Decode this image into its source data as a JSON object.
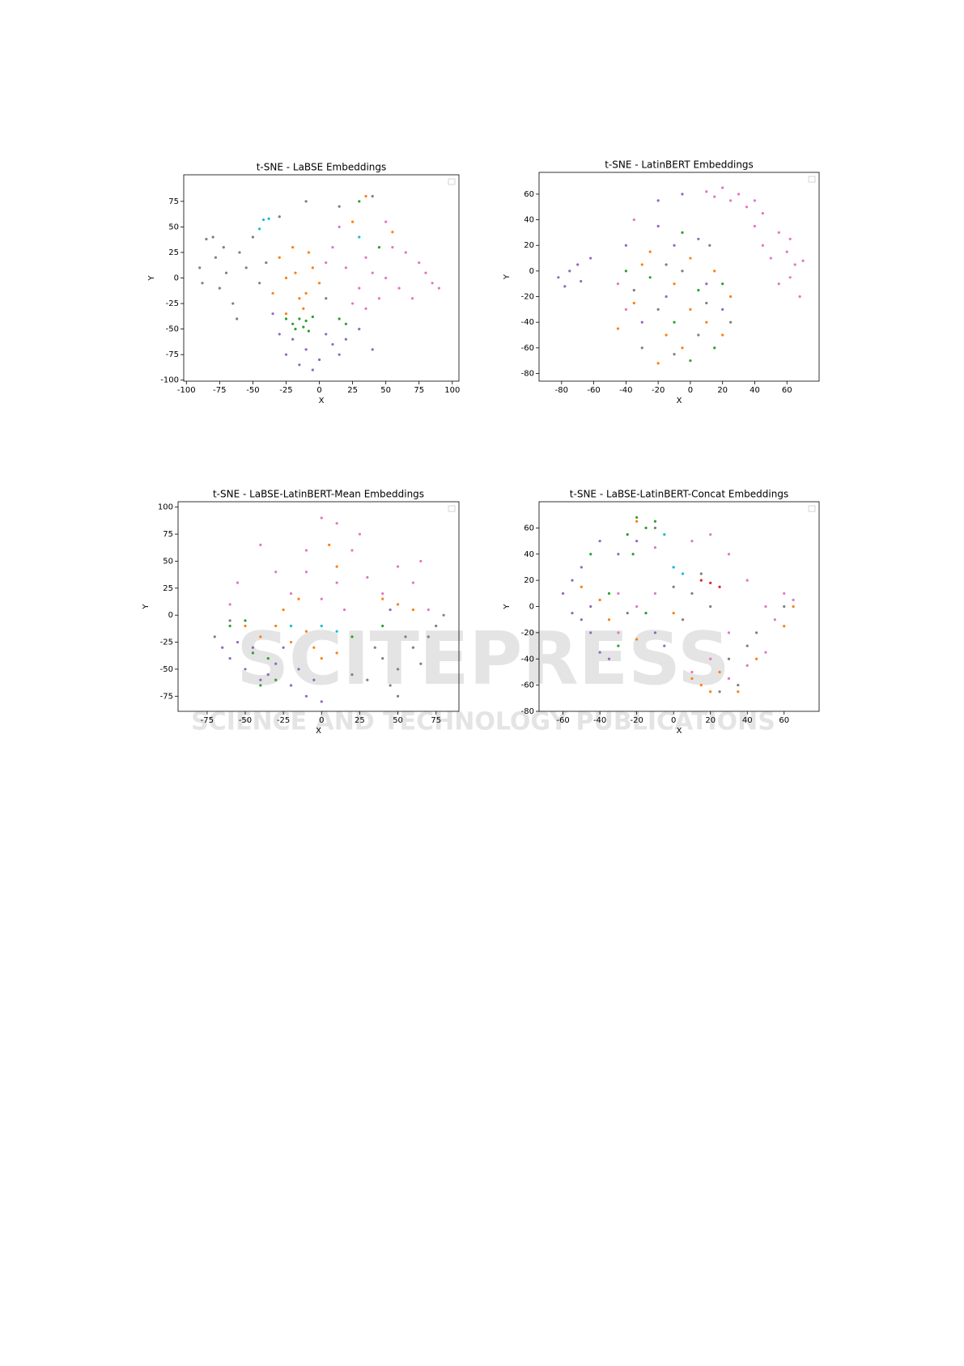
{
  "watermark": {
    "brand": "SCITEPRESS",
    "tagline": "SCIENCE AND TECHNOLOGY PUBLICATIONS"
  },
  "chart_data": [
    {
      "type": "scatter",
      "title": "t-SNE - LaBSE Embeddings",
      "x_label": "X",
      "y_label": "Y",
      "xlim": [
        -102,
        105
      ],
      "ylim": [
        -101,
        101
      ],
      "xticks": [
        -100,
        -75,
        -50,
        -25,
        0,
        25,
        50,
        75,
        100
      ],
      "yticks": [
        -100,
        -75,
        -50,
        -25,
        0,
        25,
        50,
        75
      ],
      "series": [
        {
          "color": "#7f7f7f",
          "x": [
            -85,
            -80,
            -78,
            -90,
            -70,
            -75,
            -60,
            -65,
            -55,
            -50,
            -45,
            -88,
            -72,
            -62,
            -30,
            -10,
            15,
            40,
            5,
            -40
          ],
          "values": [
            38,
            40,
            20,
            10,
            5,
            -10,
            25,
            -25,
            10,
            40,
            -5,
            -5,
            30,
            -40,
            60,
            75,
            70,
            80,
            -20,
            15
          ]
        },
        {
          "color": "#e377c2",
          "x": [
            20,
            35,
            50,
            60,
            75,
            85,
            90,
            45,
            30,
            65,
            10,
            55,
            70,
            40,
            25,
            80,
            5,
            15,
            50,
            35
          ],
          "values": [
            10,
            20,
            0,
            -10,
            15,
            -5,
            -10,
            -20,
            -10,
            25,
            30,
            30,
            -20,
            5,
            -25,
            5,
            15,
            50,
            55,
            -30
          ]
        },
        {
          "color": "#ff7f0e",
          "x": [
            -25,
            -15,
            -10,
            -30,
            -20,
            -5,
            -25,
            -12,
            -35,
            -18,
            25,
            35,
            55,
            0,
            -8
          ],
          "values": [
            0,
            -20,
            -15,
            20,
            30,
            10,
            -35,
            -30,
            -15,
            5,
            55,
            80,
            45,
            -5,
            25
          ]
        },
        {
          "color": "#2ca02c",
          "x": [
            -20,
            -15,
            -10,
            -5,
            -18,
            -12,
            -25,
            -8,
            15,
            20,
            45,
            30
          ],
          "values": [
            -45,
            -40,
            -42,
            -38,
            -50,
            -48,
            -40,
            -52,
            -40,
            -45,
            30,
            75
          ]
        },
        {
          "color": "#9467bd",
          "x": [
            -20,
            -10,
            0,
            10,
            -25,
            5,
            -15,
            20,
            -5,
            -30,
            15,
            30,
            -35,
            40
          ],
          "values": [
            -60,
            -70,
            -80,
            -65,
            -75,
            -55,
            -85,
            -60,
            -90,
            -55,
            -75,
            -50,
            -35,
            -70
          ]
        },
        {
          "color": "#17becf",
          "x": [
            -42,
            -38,
            -45,
            30
          ],
          "values": [
            57,
            58,
            48,
            40
          ]
        }
      ]
    },
    {
      "type": "scatter",
      "title": "t-SNE - LatinBERT Embeddings",
      "x_label": "X",
      "y_label": "Y",
      "xlim": [
        -94,
        80
      ],
      "ylim": [
        -86,
        77
      ],
      "xticks": [
        -80,
        -60,
        -40,
        -20,
        0,
        20,
        40,
        60
      ],
      "yticks": [
        -80,
        -60,
        -40,
        -20,
        0,
        20,
        40,
        60
      ],
      "series": [
        {
          "color": "#e377c2",
          "x": [
            10,
            20,
            30,
            40,
            45,
            55,
            60,
            65,
            70,
            62,
            68,
            45,
            50,
            35,
            25,
            15,
            40,
            62,
            55,
            -35,
            -40,
            -45
          ],
          "values": [
            62,
            65,
            60,
            55,
            45,
            30,
            15,
            5,
            8,
            -5,
            -20,
            20,
            10,
            50,
            55,
            58,
            35,
            25,
            -10,
            40,
            -30,
            -10
          ]
        },
        {
          "color": "#9467bd",
          "x": [
            -82,
            -75,
            -70,
            -62,
            -78,
            -68,
            -40,
            -20,
            -10,
            5,
            -30,
            -15,
            10,
            20,
            -20,
            -5
          ],
          "values": [
            -5,
            0,
            5,
            10,
            -12,
            -8,
            20,
            35,
            20,
            25,
            -40,
            -20,
            -10,
            -30,
            55,
            60
          ]
        },
        {
          "color": "#ff7f0e",
          "x": [
            -35,
            -10,
            0,
            -25,
            15,
            20,
            -5,
            -20,
            -15,
            10,
            25,
            -45,
            0,
            -30
          ],
          "values": [
            -25,
            -10,
            10,
            15,
            0,
            -50,
            -60,
            -72,
            -50,
            -40,
            -20,
            -45,
            -30,
            5
          ]
        },
        {
          "color": "#2ca02c",
          "x": [
            -25,
            5,
            15,
            -10,
            -40,
            20,
            -5,
            0
          ],
          "values": [
            -5,
            -15,
            -60,
            -40,
            0,
            -10,
            30,
            -70
          ]
        },
        {
          "color": "#7f7f7f",
          "x": [
            -20,
            -5,
            10,
            25,
            -30,
            -15,
            5,
            -35,
            12,
            -10
          ],
          "values": [
            -30,
            0,
            -25,
            -40,
            -60,
            5,
            -50,
            -15,
            20,
            -65
          ]
        }
      ]
    },
    {
      "type": "scatter",
      "title": "t-SNE - LaBSE-LatinBERT-Mean Embeddings",
      "x_label": "X",
      "y_label": "Y",
      "xlim": [
        -94,
        90
      ],
      "ylim": [
        -89,
        105
      ],
      "xticks": [
        -75,
        -50,
        -25,
        0,
        25,
        50,
        75
      ],
      "yticks": [
        -75,
        -50,
        -25,
        0,
        25,
        50,
        75,
        100
      ],
      "series": [
        {
          "color": "#e377c2",
          "x": [
            0,
            10,
            -10,
            20,
            -40,
            -30,
            -10,
            10,
            30,
            50,
            60,
            -20,
            0,
            40,
            -55,
            65,
            25,
            -60,
            15,
            70
          ],
          "values": [
            90,
            85,
            60,
            60,
            65,
            40,
            40,
            30,
            35,
            45,
            30,
            20,
            15,
            20,
            30,
            50,
            75,
            10,
            5,
            5
          ]
        },
        {
          "color": "#7f7f7f",
          "x": [
            40,
            50,
            60,
            45,
            70,
            75,
            30,
            55,
            65,
            80,
            20,
            -70,
            -60,
            35,
            50
          ],
          "values": [
            -40,
            -50,
            -30,
            -65,
            -20,
            -10,
            -60,
            -20,
            -45,
            0,
            -55,
            -20,
            -5,
            -30,
            -75
          ]
        },
        {
          "color": "#9467bd",
          "x": [
            -60,
            -50,
            -45,
            -40,
            -30,
            -20,
            -10,
            -55,
            -35,
            -25,
            -65,
            -15,
            0,
            45,
            -5
          ],
          "values": [
            -40,
            -50,
            -30,
            -60,
            -45,
            -65,
            -75,
            -25,
            -55,
            -30,
            -30,
            -50,
            -80,
            5,
            -60
          ]
        },
        {
          "color": "#ff7f0e",
          "x": [
            -40,
            -30,
            -20,
            -10,
            0,
            10,
            -25,
            -15,
            50,
            40,
            60,
            10,
            5,
            -5,
            -50
          ],
          "values": [
            -20,
            -10,
            -25,
            -15,
            -40,
            -35,
            5,
            15,
            10,
            15,
            5,
            45,
            65,
            -30,
            -10
          ]
        },
        {
          "color": "#2ca02c",
          "x": [
            -45,
            -35,
            -50,
            -40,
            -30,
            40,
            20,
            -60
          ],
          "values": [
            -35,
            -40,
            -5,
            -65,
            -60,
            -10,
            -20,
            -10
          ]
        },
        {
          "color": "#17becf",
          "x": [
            -20,
            0,
            10
          ],
          "values": [
            -10,
            -10,
            -15
          ]
        }
      ]
    },
    {
      "type": "scatter",
      "title": "t-SNE - LaBSE-LatinBERT-Concat Embeddings",
      "x_label": "X",
      "y_label": "Y",
      "xlim": [
        -73,
        79
      ],
      "ylim": [
        -80,
        80
      ],
      "xticks": [
        -60,
        -40,
        -20,
        0,
        20,
        40,
        60
      ],
      "yticks": [
        -80,
        -60,
        -40,
        -20,
        0,
        20,
        40,
        60
      ],
      "series": [
        {
          "color": "#9467bd",
          "x": [
            -60,
            -55,
            -50,
            -45,
            -40,
            -50,
            -30,
            -20,
            -40,
            -55,
            -35,
            -10,
            -5,
            -45
          ],
          "values": [
            10,
            20,
            30,
            -20,
            -35,
            -10,
            40,
            50,
            50,
            -5,
            -40,
            -20,
            -30,
            0
          ]
        },
        {
          "color": "#e377c2",
          "x": [
            -30,
            -20,
            -10,
            0,
            10,
            20,
            -10,
            30,
            40,
            50,
            60,
            65,
            55,
            30,
            20,
            10,
            30,
            40,
            50,
            -30
          ],
          "values": [
            10,
            0,
            10,
            30,
            50,
            55,
            45,
            40,
            20,
            0,
            10,
            5,
            -10,
            -20,
            -40,
            -50,
            -55,
            -45,
            -35,
            -20
          ]
        },
        {
          "color": "#7f7f7f",
          "x": [
            0,
            10,
            20,
            5,
            -10,
            15,
            40,
            35,
            25,
            45,
            -25,
            30,
            60
          ],
          "values": [
            15,
            10,
            0,
            -10,
            60,
            25,
            -30,
            -60,
            -65,
            -20,
            -5,
            -40,
            0
          ]
        },
        {
          "color": "#ff7f0e",
          "x": [
            -40,
            -35,
            -20,
            15,
            20,
            25,
            35,
            45,
            60,
            65,
            -20,
            -50,
            0,
            10
          ],
          "values": [
            5,
            -10,
            -25,
            -60,
            -65,
            -50,
            -65,
            -40,
            -15,
            0,
            65,
            15,
            -5,
            -55
          ]
        },
        {
          "color": "#2ca02c",
          "x": [
            -20,
            -15,
            -25,
            -10,
            -22,
            -30,
            -35,
            -15,
            -45
          ],
          "values": [
            68,
            60,
            55,
            65,
            40,
            -30,
            10,
            -5,
            40
          ]
        },
        {
          "color": "#17becf",
          "x": [
            0,
            5,
            -5
          ],
          "values": [
            30,
            25,
            55
          ]
        },
        {
          "color": "#d62728",
          "x": [
            15,
            20,
            25
          ],
          "values": [
            20,
            18,
            15
          ]
        }
      ]
    }
  ]
}
